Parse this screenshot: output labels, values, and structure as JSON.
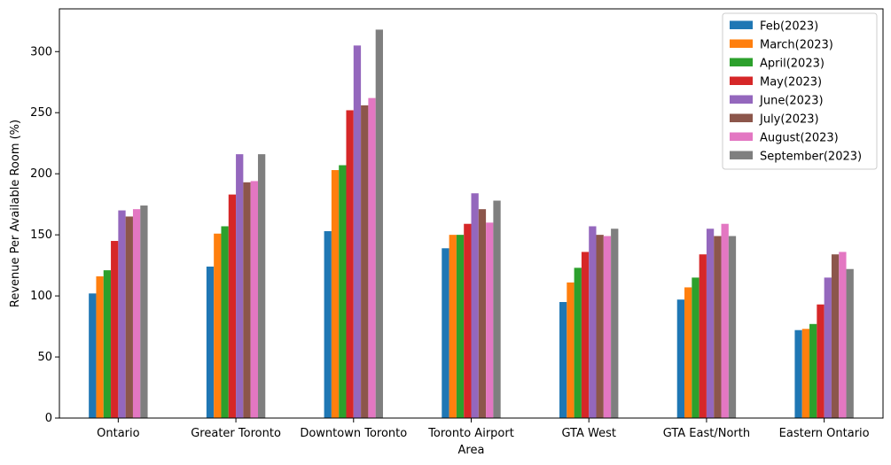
{
  "chart_data": {
    "type": "bar",
    "title": "",
    "xlabel": "Area",
    "ylabel": "Revenue Per Available Room (%)",
    "ylim": [
      0,
      335
    ],
    "yticks": [
      0,
      50,
      100,
      150,
      200,
      250,
      300
    ],
    "grid": false,
    "legend_position": "top-right",
    "categories": [
      "Ontario",
      "Greater Toronto",
      "Downtown Toronto",
      "Toronto Airport",
      "GTA West",
      "GTA East/North",
      "Eastern Ontario"
    ],
    "series": [
      {
        "name": "Feb(2023)",
        "color": "#1f77b4",
        "values": [
          102,
          124,
          153,
          139,
          95,
          97,
          72
        ]
      },
      {
        "name": "March(2023)",
        "color": "#ff7f0e",
        "values": [
          116,
          151,
          203,
          150,
          111,
          107,
          73
        ]
      },
      {
        "name": "April(2023)",
        "color": "#2ca02c",
        "values": [
          121,
          157,
          207,
          150,
          123,
          115,
          77
        ]
      },
      {
        "name": "May(2023)",
        "color": "#d62728",
        "values": [
          145,
          183,
          252,
          159,
          136,
          134,
          93
        ]
      },
      {
        "name": "June(2023)",
        "color": "#9467bd",
        "values": [
          170,
          216,
          305,
          184,
          157,
          155,
          115
        ]
      },
      {
        "name": "July(2023)",
        "color": "#8c564b",
        "values": [
          165,
          193,
          256,
          171,
          150,
          149,
          134
        ]
      },
      {
        "name": "August(2023)",
        "color": "#e377c2",
        "values": [
          171,
          194,
          262,
          160,
          149,
          159,
          136
        ]
      },
      {
        "name": "September(2023)",
        "color": "#7f7f7f",
        "values": [
          174,
          216,
          318,
          178,
          155,
          149,
          122
        ]
      }
    ]
  }
}
